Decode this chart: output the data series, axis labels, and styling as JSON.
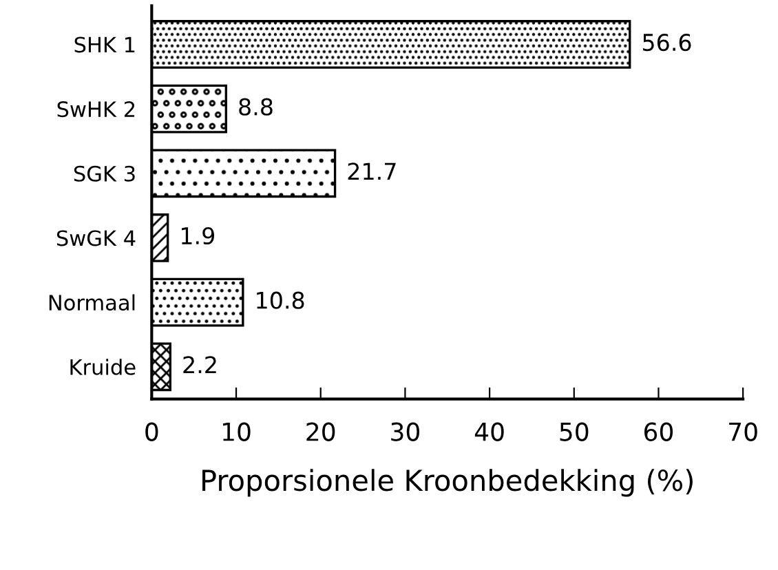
{
  "chart_data": {
    "type": "bar",
    "orientation": "horizontal",
    "xlabel": "Proporsionele Kroonbedekking (%)",
    "categories": [
      "SHK 1",
      "SwHK 2",
      "SGK 3",
      "SwGK 4",
      "Normaal",
      "Kruide"
    ],
    "values": [
      56.6,
      8.8,
      21.7,
      1.9,
      10.8,
      2.2
    ],
    "color": "#000000",
    "data_labels": true,
    "xlim": [
      0,
      70
    ],
    "xticks": [
      0,
      10,
      20,
      30,
      40,
      50,
      60,
      70
    ],
    "grid": false,
    "legend": false
  }
}
